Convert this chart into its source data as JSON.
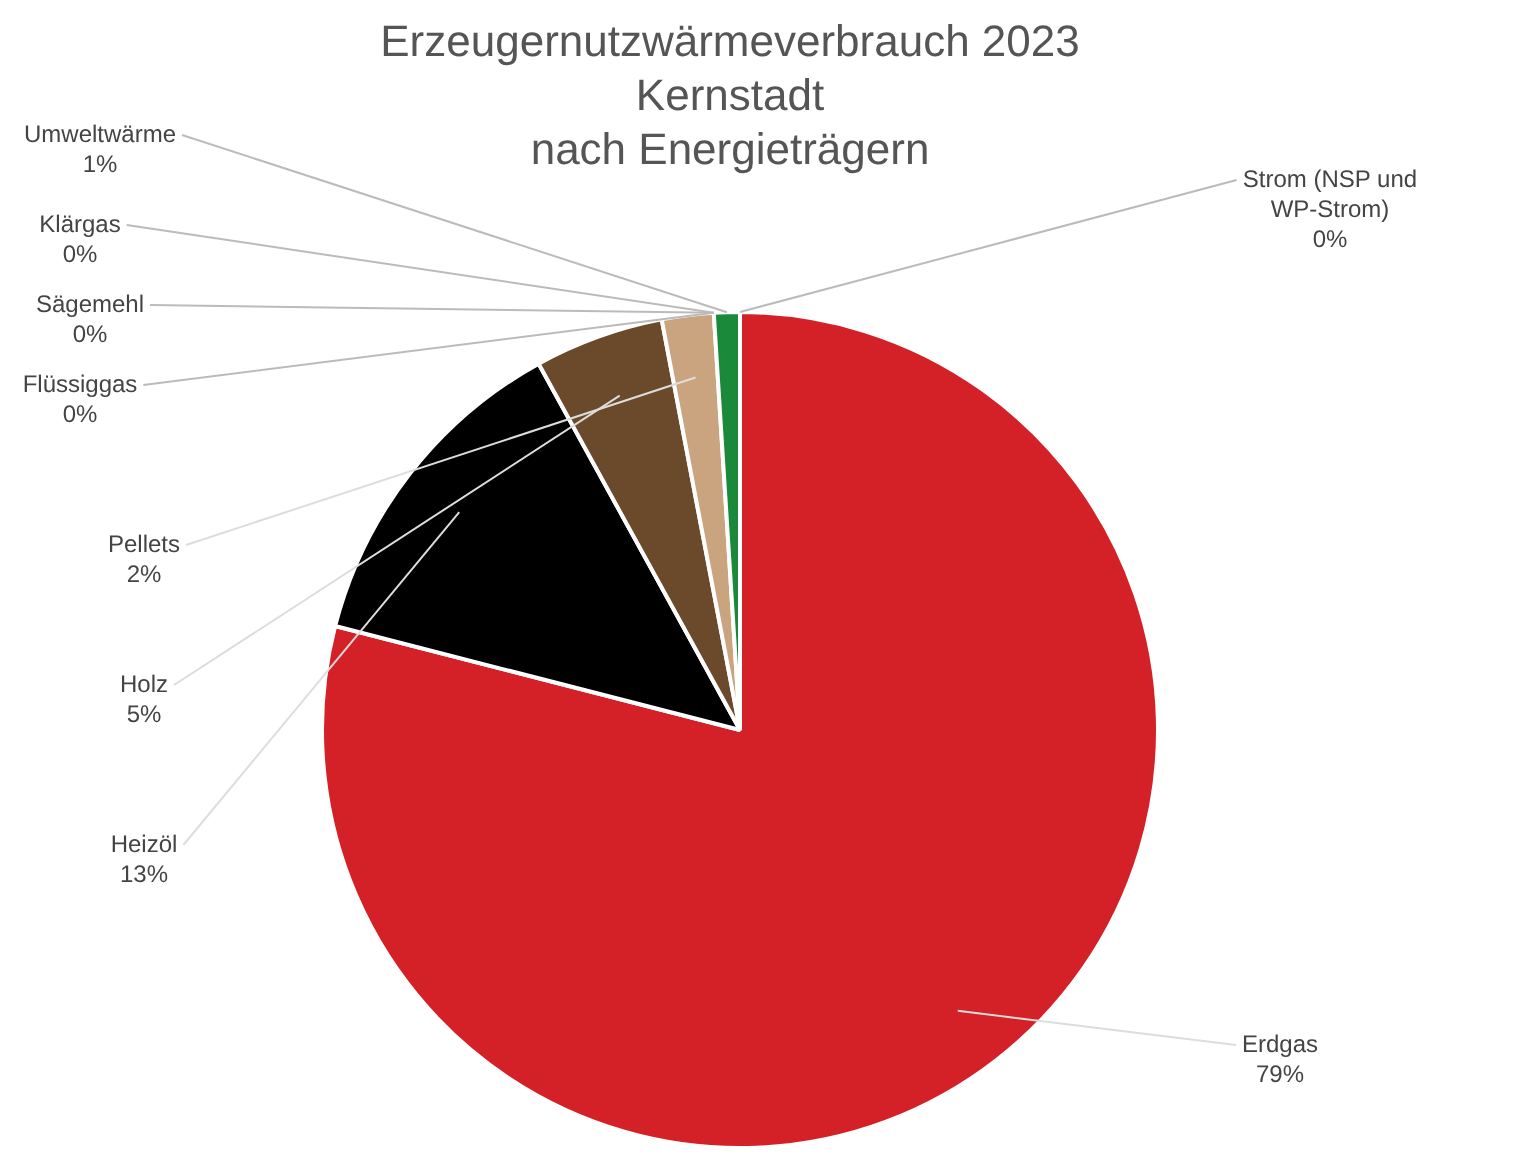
{
  "chart_data": {
    "type": "pie",
    "title": "Erzeugernutzwärmeverbrauch 2023\nKernstadt\nnach Energieträgern",
    "categories": [
      "Erdgas",
      "Heizöl",
      "Holz",
      "Pellets",
      "Flüssiggas",
      "Sägemehl",
      "Klärgas",
      "Umweltwärme",
      "Strom (NSP und WP-Strom)"
    ],
    "values": [
      79,
      13,
      5,
      2,
      0,
      0,
      0,
      1,
      0
    ],
    "colors": [
      "#d42027",
      "#000000",
      "#6b4a2b",
      "#c9a47e",
      "#f2e8a8",
      "#e8d8b0",
      "#9fd39f",
      "#1a8a3a",
      "#d8f0d8"
    ],
    "value_labels": [
      "79%",
      "13%",
      "5%",
      "2%",
      "0%",
      "0%",
      "0%",
      "1%",
      "0%"
    ],
    "legend": false
  }
}
